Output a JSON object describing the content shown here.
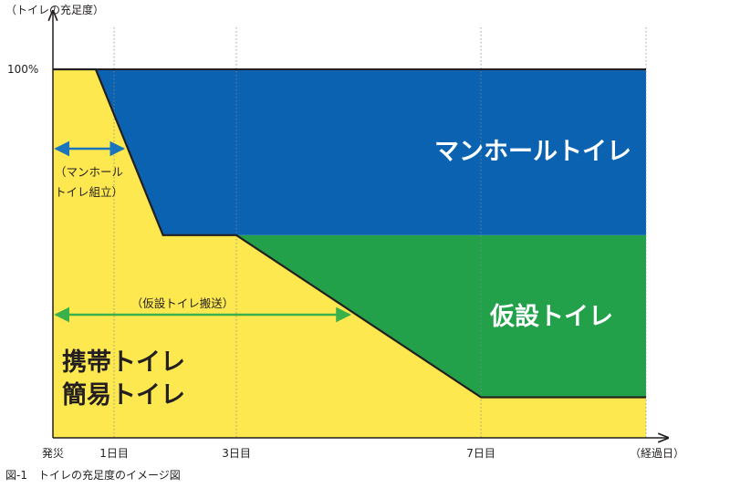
{
  "chart_data": {
    "type": "area",
    "ylabel": "（トイレの充足度）",
    "xlabel": "（経過日）",
    "y_tick": "100%",
    "x_ticks": [
      {
        "day": 0,
        "label": "発災"
      },
      {
        "day": 1,
        "label": "1日目"
      },
      {
        "day": 3,
        "label": "3日目"
      },
      {
        "day": 7,
        "label": "7日目"
      }
    ],
    "x_range": [
      0,
      9.7
    ],
    "y_range": [
      0,
      100
    ],
    "series": [
      {
        "name": "携帯トイレ\n簡易トイレ",
        "color": "#fde84f",
        "upper": [
          [
            0,
            100
          ],
          [
            0.7,
            100
          ],
          [
            1.8,
            55
          ],
          [
            3,
            55
          ],
          [
            7,
            11
          ],
          [
            9.7,
            11
          ]
        ],
        "lower": [
          [
            0,
            0
          ],
          [
            9.7,
            0
          ]
        ]
      },
      {
        "name": "仮設トイレ",
        "color": "#22a04a",
        "upper": [
          [
            3,
            55
          ],
          [
            9.7,
            55
          ]
        ],
        "lower": [
          [
            3,
            55
          ],
          [
            7,
            11
          ],
          [
            9.7,
            11
          ]
        ]
      },
      {
        "name": "マンホールトイレ",
        "color": "#0a62b0",
        "upper": [
          [
            0.7,
            100
          ],
          [
            9.7,
            100
          ]
        ],
        "lower": [
          [
            0.7,
            100
          ],
          [
            1.8,
            55
          ],
          [
            9.7,
            55
          ]
        ]
      }
    ],
    "boundary_line": [
      [
        0,
        100
      ],
      [
        0.7,
        100
      ],
      [
        1.8,
        55
      ],
      [
        3,
        55
      ],
      [
        7,
        11
      ],
      [
        9.7,
        11
      ]
    ],
    "annotations": [
      {
        "text": "（マンホール\nトイレ組立）",
        "arrow_from": 0,
        "arrow_to": 1.2,
        "color": "#1b75bc"
      },
      {
        "text": "（仮設トイレ搬送）",
        "arrow_from": 0,
        "arrow_to": 4.9,
        "color": "#3ab04a"
      }
    ]
  },
  "caption": "図-1　トイレの充足度のイメージ図"
}
